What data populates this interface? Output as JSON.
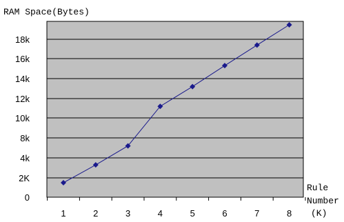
{
  "chart_data": {
    "type": "line",
    "ylabel": "RAM Space(Bytes)",
    "xlabel": [
      "Rule",
      "Number",
      "(K)"
    ],
    "x": [
      1,
      2,
      3,
      4,
      5,
      6,
      7,
      8
    ],
    "x_tick_labels": [
      "1",
      "2",
      "3",
      "4",
      "5",
      "6",
      "7",
      "8"
    ],
    "y_tick_labels": [
      "0",
      "2K",
      "4k",
      "8k",
      "10k",
      "12k",
      "14k",
      "16k",
      "18k"
    ],
    "series": [
      {
        "values": [
          1500,
          3300,
          5200,
          9200,
          11200,
          13300,
          15400,
          17500
        ],
        "color": "#1a1a8c"
      }
    ],
    "grid": true,
    "plot_background": "#c0c0c0"
  }
}
